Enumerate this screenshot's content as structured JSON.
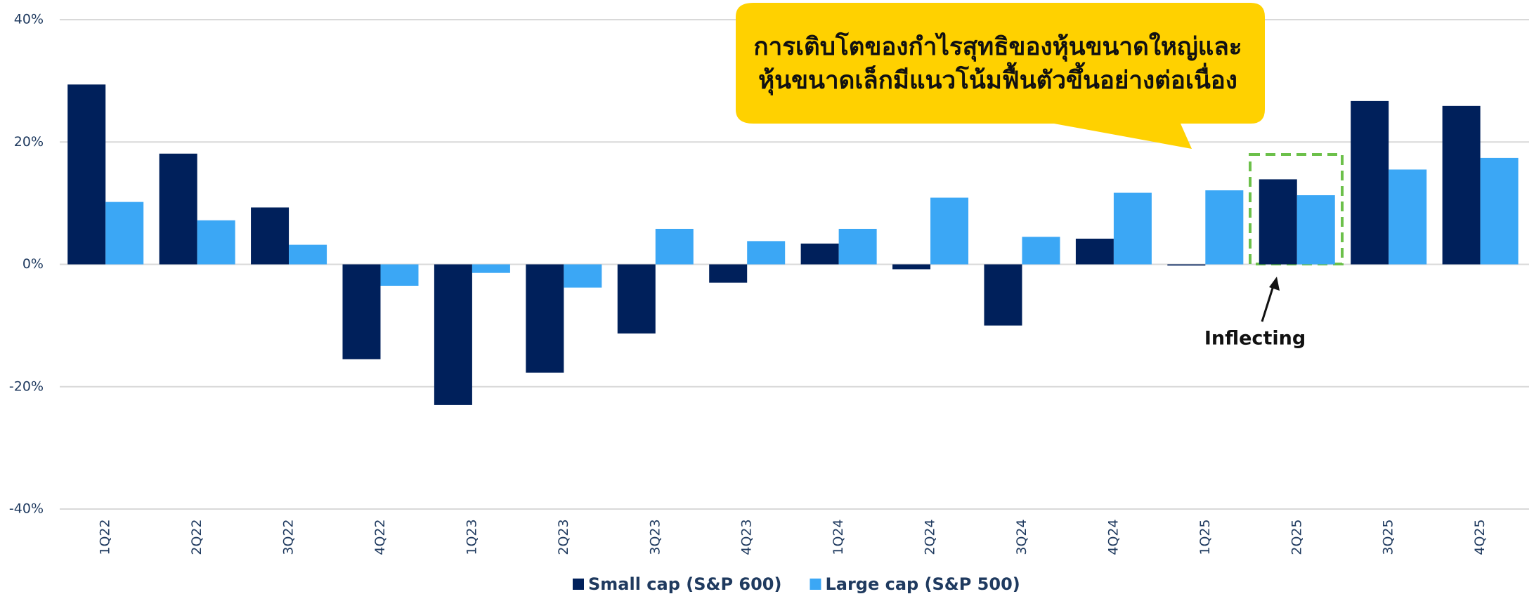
{
  "chart_data": {
    "type": "bar",
    "categories": [
      "1Q22",
      "2Q22",
      "3Q22",
      "4Q22",
      "1Q23",
      "2Q23",
      "3Q23",
      "4Q23",
      "1Q24",
      "2Q24",
      "3Q24",
      "4Q24",
      "1Q25",
      "2Q25",
      "3Q25",
      "4Q25"
    ],
    "series": [
      {
        "name": "Small cap (S&P 600)",
        "color": "#00205b",
        "values": [
          29.4,
          18.1,
          9.3,
          -15.5,
          -23,
          -17.7,
          -11.3,
          -3,
          3.4,
          -0.8,
          -10,
          4.2,
          -0.2,
          13.9,
          26.7,
          25.9
        ]
      },
      {
        "name": "Large cap (S&P 500)",
        "color": "#3ba7f5",
        "values": [
          10.2,
          7.2,
          3.2,
          -3.5,
          -1.4,
          -3.8,
          5.8,
          3.8,
          5.8,
          10.9,
          4.5,
          11.7,
          12.1,
          11.3,
          15.5,
          17.4
        ]
      }
    ],
    "ylim": [
      -40,
      40
    ],
    "yticks": [
      {
        "value": 40,
        "label": "40%"
      },
      {
        "value": 20,
        "label": "20%"
      },
      {
        "value": 0,
        "label": "0%"
      },
      {
        "value": -20,
        "label": "-20%"
      },
      {
        "value": -40,
        "label": "-40%"
      }
    ],
    "grid": true,
    "callout": [
      "การเติบโตของกำไรสุทธิของหุ้นขนาดใหญ่และ",
      "หุ้นขนาดเล็กมีแนวโน้มฟื้นตัวขึ้นอย่างต่อเนื่อง"
    ],
    "annotation": "Inflecting",
    "legend": "bottom"
  }
}
